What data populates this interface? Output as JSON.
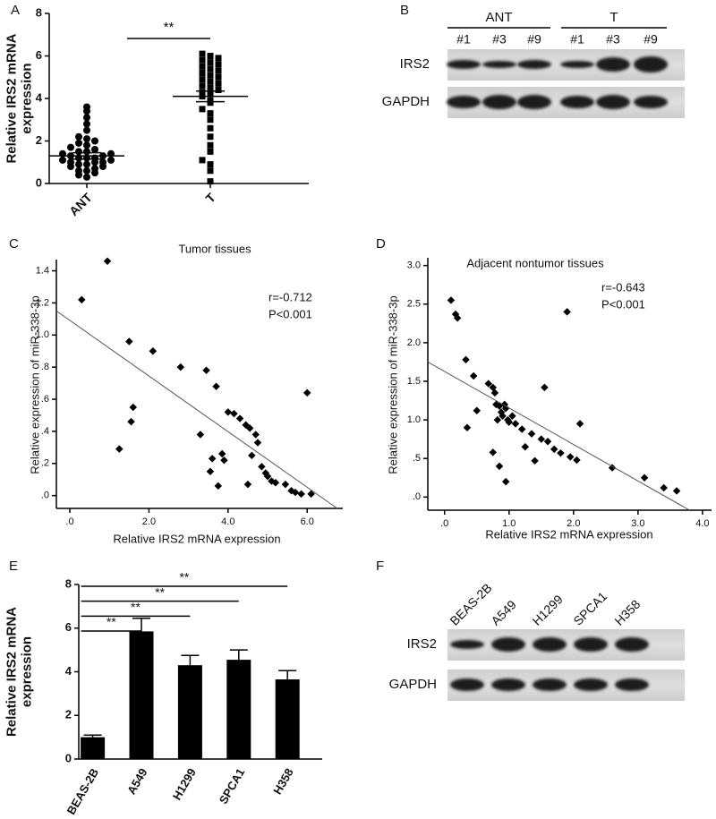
{
  "chart_data": [
    {
      "type": "strip",
      "label": "A",
      "ylabel": [
        "Relative IRS2 mRNA",
        "expression"
      ],
      "categories": [
        "ANT",
        "T"
      ],
      "values": [
        [
          0.3,
          0.4,
          0.5,
          0.6,
          0.6,
          0.7,
          0.8,
          0.8,
          0.9,
          0.9,
          1.0,
          1.0,
          1.0,
          1.1,
          1.1,
          1.2,
          1.2,
          1.2,
          1.3,
          1.3,
          1.4,
          1.4,
          1.5,
          1.5,
          1.6,
          1.7,
          1.8,
          1.9,
          2.0,
          2.1,
          2.2,
          2.5,
          2.8,
          3.1,
          3.4,
          3.6
        ],
        [
          0.1,
          0.6,
          0.9,
          1.1,
          1.5,
          1.8,
          2.2,
          2.6,
          3.0,
          3.3,
          3.5,
          3.8,
          3.9,
          4.1,
          4.2,
          4.3,
          4.4,
          4.5,
          4.6,
          4.7,
          4.8,
          4.9,
          5.0,
          5.1,
          5.2,
          5.3,
          5.4,
          5.5,
          5.6,
          5.7,
          5.8,
          5.9,
          6.0,
          6.1
        ]
      ],
      "means": [
        1.3,
        4.1
      ],
      "errors": [
        0.15,
        0.25
      ],
      "markers": [
        "circle",
        "square"
      ],
      "color": "#000000",
      "significance": "**",
      "ylim": [
        0,
        8
      ],
      "yticks": [
        0,
        2,
        4,
        6,
        8
      ]
    },
    {
      "type": "scatter",
      "label": "C",
      "title": "Tumor tissues",
      "annotations": [
        "r=-0.712",
        "P<0.001"
      ],
      "xlabel": "Relative IRS2 mRNA expression",
      "ylabel": "Relative expression of miR-338-3p",
      "x": [
        0.3,
        0.95,
        1.5,
        1.6,
        1.55,
        1.25,
        2.1,
        2.8,
        3.45,
        3.7,
        3.3,
        3.6,
        3.55,
        3.85,
        3.9,
        3.75,
        4.0,
        4.15,
        4.3,
        4.45,
        4.55,
        4.7,
        4.75,
        4.6,
        4.85,
        4.95,
        5.0,
        5.1,
        4.5,
        5.2,
        5.45,
        5.6,
        5.7,
        5.85,
        6.0,
        6.1
      ],
      "y": [
        1.22,
        1.46,
        0.96,
        0.55,
        0.46,
        0.29,
        0.9,
        0.8,
        0.78,
        0.68,
        0.38,
        0.23,
        0.15,
        0.26,
        0.22,
        0.06,
        0.52,
        0.51,
        0.48,
        0.44,
        0.42,
        0.38,
        0.33,
        0.25,
        0.18,
        0.14,
        0.12,
        0.09,
        0.07,
        0.08,
        0.07,
        0.03,
        0.02,
        0.01,
        0.64,
        0.01
      ],
      "trendline": {
        "x": [
          -0.34,
          6.76
        ],
        "y": [
          1.15,
          -0.08
        ]
      },
      "color": "#000000",
      "xlim": [
        -0.34,
        6.9
      ],
      "ylim": [
        -0.08,
        1.47
      ],
      "xticks": [
        {
          "value": 0,
          "label": ".0"
        },
        {
          "value": 2,
          "label": "2.0"
        },
        {
          "value": 4,
          "label": "4.0"
        },
        {
          "value": 6,
          "label": "6.0"
        }
      ],
      "yticks": [
        {
          "value": 0,
          "label": ".0"
        },
        {
          "value": 0.2,
          "label": ".2"
        },
        {
          "value": 0.4,
          "label": ".4"
        },
        {
          "value": 0.6,
          "label": ".6"
        },
        {
          "value": 0.8,
          "label": ".8"
        },
        {
          "value": 1.0,
          "label": "1.0"
        },
        {
          "value": 1.2,
          "label": "1.2"
        },
        {
          "value": 1.4,
          "label": "1.4"
        }
      ]
    },
    {
      "type": "scatter",
      "label": "D",
      "title": "Adjacent nontumor tissues",
      "annotations": [
        "r=-0.643",
        "P<0.001"
      ],
      "xlabel": "Relative IRS2 mRNA expression",
      "ylabel": "Relative expression of miR-338-3p",
      "x": [
        0.1,
        0.17,
        0.2,
        0.33,
        0.45,
        0.5,
        0.35,
        0.68,
        0.75,
        0.78,
        0.8,
        0.85,
        0.88,
        0.9,
        0.93,
        0.95,
        0.98,
        1.0,
        1.05,
        1.1,
        0.82,
        0.75,
        0.85,
        0.95,
        1.2,
        1.35,
        1.5,
        1.55,
        1.6,
        1.7,
        1.8,
        1.9,
        1.95,
        2.05,
        2.1,
        1.4,
        1.25,
        2.6,
        3.1,
        3.4,
        3.6
      ],
      "y": [
        2.55,
        2.37,
        2.32,
        1.78,
        1.57,
        1.12,
        0.9,
        1.47,
        1.42,
        1.35,
        1.2,
        1.18,
        1.1,
        1.05,
        1.2,
        1.15,
        1.0,
        0.97,
        1.05,
        0.95,
        1.0,
        0.58,
        0.4,
        0.2,
        0.88,
        0.82,
        0.75,
        1.42,
        0.72,
        0.62,
        0.57,
        2.4,
        0.52,
        0.48,
        0.95,
        0.47,
        0.65,
        0.38,
        0.25,
        0.12,
        0.08
      ],
      "trendline": {
        "x": [
          -0.26,
          3.8
        ],
        "y": [
          1.75,
          -0.17
        ]
      },
      "color": "#000000",
      "xlim": [
        -0.26,
        4.14
      ],
      "ylim": [
        -0.17,
        3.1
      ],
      "xticks": [
        {
          "value": 0,
          "label": ".0"
        },
        {
          "value": 1,
          "label": "1.0"
        },
        {
          "value": 2,
          "label": "2.0"
        },
        {
          "value": 3,
          "label": "3.0"
        },
        {
          "value": 4,
          "label": "4.0"
        }
      ],
      "yticks": [
        {
          "value": 0,
          "label": ".0"
        },
        {
          "value": 0.5,
          "label": ".5"
        },
        {
          "value": 1.0,
          "label": "1.0"
        },
        {
          "value": 1.5,
          "label": "1.5"
        },
        {
          "value": 2.0,
          "label": "2.0"
        },
        {
          "value": 2.5,
          "label": "2.5"
        },
        {
          "value": 3.0,
          "label": "3.0"
        }
      ]
    },
    {
      "type": "bar",
      "label": "E",
      "ylabel": [
        "Relative IRS2 mRNA",
        "expression"
      ],
      "categories": [
        "BEAS-2B",
        "A549",
        "H1299",
        "SPCA1",
        "H358"
      ],
      "values": [
        1.0,
        5.85,
        4.3,
        4.55,
        3.65
      ],
      "errors": [
        0.1,
        0.6,
        0.45,
        0.45,
        0.4
      ],
      "significance": [
        null,
        "**",
        "**",
        "**",
        "**"
      ],
      "color": "#000000",
      "ylim": [
        0,
        8
      ],
      "yticks": [
        0,
        2,
        4,
        6,
        8
      ]
    }
  ],
  "blots": [
    {
      "label": "B",
      "groups": [
        {
          "name": "ANT",
          "lanes": [
            "#1",
            "#3",
            "#9"
          ]
        },
        {
          "name": "T",
          "lanes": [
            "#1",
            "#3",
            "#9"
          ]
        }
      ],
      "rows": [
        "IRS2",
        "GAPDH"
      ]
    },
    {
      "label": "F",
      "lanes": [
        "BEAS-2B",
        "A549",
        "H1299",
        "SPCA1",
        "H358"
      ],
      "rows": [
        "IRS2",
        "GAPDH"
      ]
    }
  ]
}
